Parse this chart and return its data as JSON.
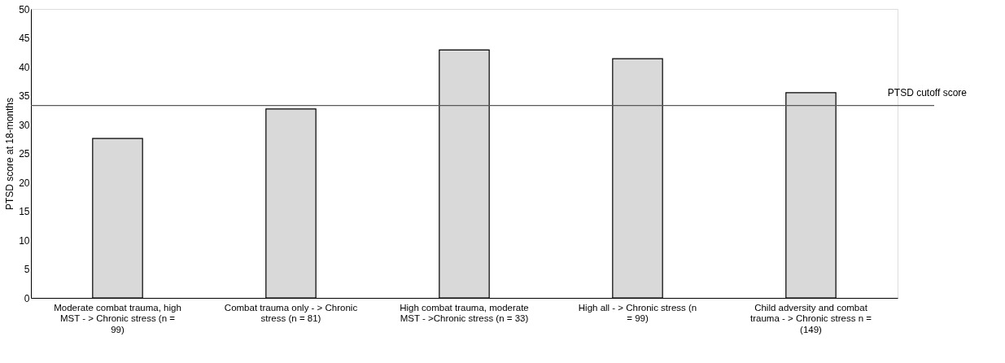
{
  "chart_data": {
    "type": "bar",
    "ylabel": "PTSD score at 18-months",
    "categories": [
      "Moderate combat trauma, high MST - > Chronic stress (n = 99)",
      "Combat trauma only - > Chronic stress (n = 81)",
      "High combat trauma, moderate MST - >Chronic stress (n = 33)",
      "High all - > Chronic stress (n = 99)",
      "Child adversity and combat trauma - > Chronic stress n = (149)"
    ],
    "values": [
      27.6,
      32.7,
      42.9,
      41.4,
      35.5
    ],
    "color": "#d9d9d9",
    "ylim": [
      0,
      50
    ],
    "yticks": [
      0,
      5,
      10,
      15,
      20,
      25,
      30,
      35,
      40,
      45,
      50
    ],
    "grid": false,
    "ref_lines": [
      {
        "axis": "y",
        "value": 33.3,
        "label": "PTSD cutoff score",
        "color": "#595959"
      }
    ]
  }
}
